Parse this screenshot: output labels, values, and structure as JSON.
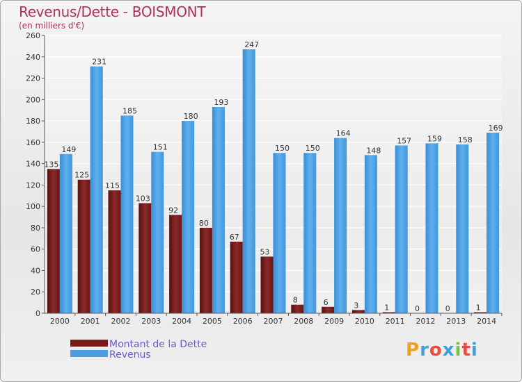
{
  "title": "Revenus/Dette - BOISMONT",
  "subtitle": "(en milliers d'€)",
  "logo": {
    "text": "Proxiti",
    "colors": [
      "#f0a020",
      "#3da0e0",
      "#e94b3c",
      "#3da0e0",
      "#7cc242",
      "#e94b3c",
      "#3da0e0"
    ]
  },
  "colors": {
    "dette": "#7a1b1b",
    "revenus": "#4a9fe0",
    "title": "#b03060",
    "legend_text": "#6a5acd"
  },
  "chart_data": {
    "type": "bar",
    "title": "Revenus/Dette - BOISMONT",
    "ylabel": "(en milliers d'€)",
    "xlabel": "",
    "ylim": [
      0,
      260
    ],
    "ytick_step": 20,
    "categories": [
      "2000",
      "2001",
      "2002",
      "2003",
      "2004",
      "2005",
      "2006",
      "2007",
      "2008",
      "2009",
      "2010",
      "2011",
      "2012",
      "2013",
      "2014"
    ],
    "series": [
      {
        "name": "Montant de la Dette",
        "values": [
          135,
          125,
          115,
          103,
          92,
          80,
          67,
          53,
          8,
          6,
          3,
          1,
          0,
          0,
          1
        ]
      },
      {
        "name": "Revenus",
        "values": [
          149,
          231,
          185,
          151,
          180,
          193,
          247,
          150,
          150,
          164,
          148,
          157,
          159,
          158,
          169
        ]
      }
    ],
    "legend_position": "bottom-left"
  }
}
